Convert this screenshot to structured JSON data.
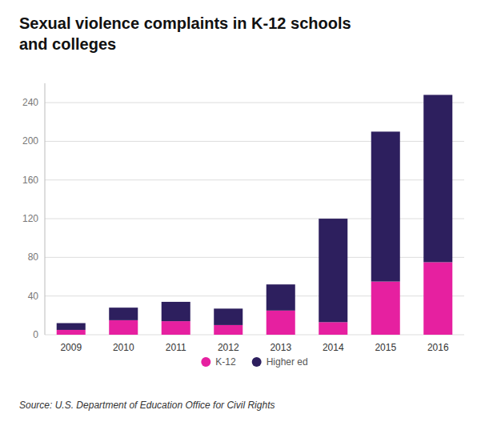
{
  "chart_data": {
    "type": "bar",
    "stacked": true,
    "title": "Sexual violence complaints in K-12 schools\nand colleges",
    "categories": [
      "2009",
      "2010",
      "2011",
      "2012",
      "2013",
      "2014",
      "2015",
      "2016"
    ],
    "series": [
      {
        "name": "K-12",
        "color": "#e620a0",
        "values": [
          5,
          15,
          14,
          10,
          25,
          13,
          55,
          75
        ]
      },
      {
        "name": "Higher ed",
        "color": "#2d1f5e",
        "values": [
          7,
          13,
          20,
          17,
          27,
          107,
          155,
          173
        ]
      }
    ],
    "ylim": [
      0,
      260
    ],
    "yticks": [
      0,
      40,
      80,
      120,
      160,
      200,
      240
    ],
    "grid": true,
    "legend": "bottom",
    "annotations": [
      "Source: U.S. Department of Education Office for Civil Rights"
    ]
  }
}
